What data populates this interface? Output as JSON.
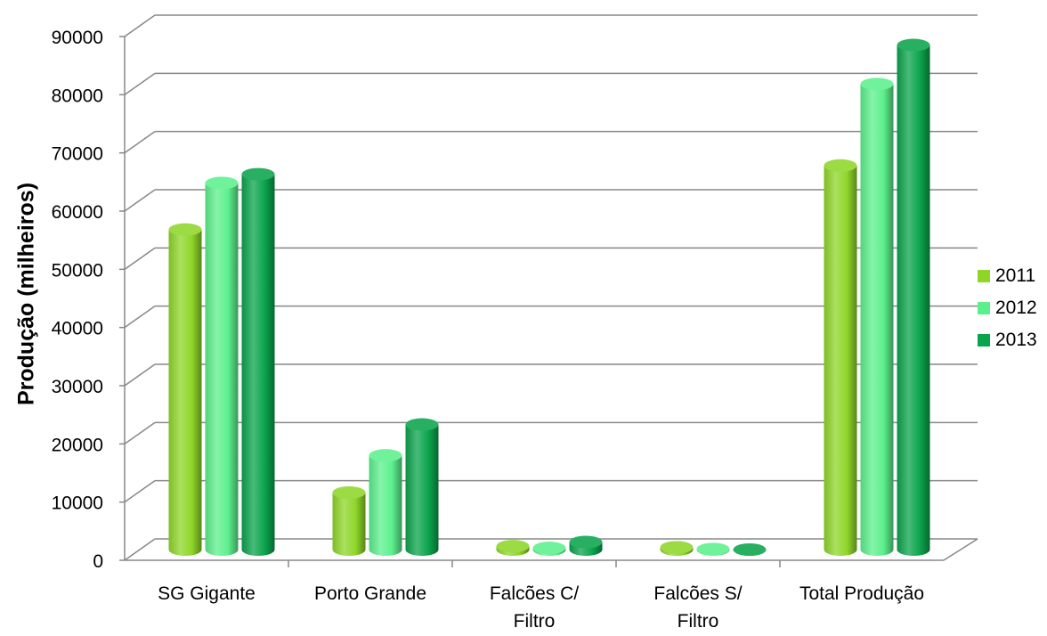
{
  "chart_data": {
    "type": "bar",
    "title": "",
    "xlabel": "",
    "ylabel": "Produção (milheiros)",
    "ylim": [
      0,
      90000
    ],
    "y_ticks": [
      "0",
      "10000",
      "20000",
      "30000",
      "40000",
      "50000",
      "60000",
      "70000",
      "80000",
      "90000"
    ],
    "categories": [
      [
        "SG Gigante"
      ],
      [
        "Porto Grande"
      ],
      [
        "Falcões C/",
        "Filtro"
      ],
      [
        "Falcões S/",
        "Filtro"
      ],
      [
        "Total Produção"
      ]
    ],
    "series": [
      {
        "name": "2011",
        "color": "#8fd629",
        "values": [
          55000,
          9800,
          600,
          400,
          66000
        ]
      },
      {
        "name": "2012",
        "color": "#5cf08c",
        "values": [
          63000,
          16200,
          300,
          100,
          80000
        ]
      },
      {
        "name": "2013",
        "color": "#0ba44c",
        "values": [
          64500,
          21500,
          1300,
          0,
          86700
        ]
      }
    ],
    "grid": true,
    "legend_position": "right"
  }
}
